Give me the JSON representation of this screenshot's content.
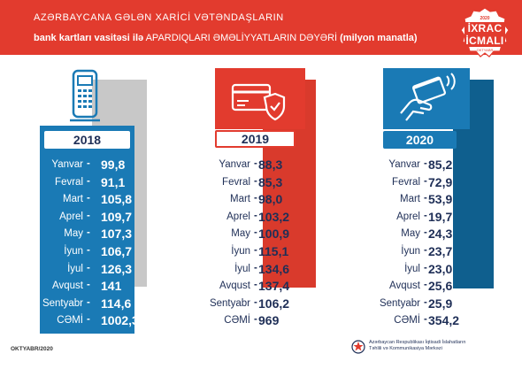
{
  "header": {
    "title_line1": "AZƏRBAYCANA GƏLƏN XARİCİ VƏTƏNDAŞLARIN",
    "title_line2_bold": "bank kartları vasitəsi ilə",
    "title_line2_rest": " APARDIQLARI ƏMƏLİYYATLARIN DƏYƏRİ ",
    "title_line2_unit": "(milyon manatla)"
  },
  "badge": {
    "year": "2020",
    "line1": "İXRAC",
    "line2": "İCMALI",
    "small": "OKTYABR"
  },
  "panels": [
    {
      "year": "2018",
      "rows": [
        {
          "month": "Yanvar",
          "value": "99,8"
        },
        {
          "month": "Fevral",
          "value": "91,1"
        },
        {
          "month": "Mart",
          "value": "105,8"
        },
        {
          "month": "Aprel",
          "value": "109,7"
        },
        {
          "month": "May",
          "value": "107,3"
        },
        {
          "month": "İyun",
          "value": "106,7"
        },
        {
          "month": "İyul",
          "value": "126,3"
        },
        {
          "month": "Avqust",
          "value": "141"
        },
        {
          "month": "Sentyabr",
          "value": "114,6"
        },
        {
          "month": "CƏMİ",
          "value": "1002,3"
        }
      ],
      "icon": "pos-terminal-icon"
    },
    {
      "year": "2019",
      "rows": [
        {
          "month": "Yanvar",
          "value": "88,3"
        },
        {
          "month": "Fevral",
          "value": "85,3"
        },
        {
          "month": "Mart",
          "value": "98,0"
        },
        {
          "month": "Aprel",
          "value": "103,2"
        },
        {
          "month": "May",
          "value": "100,9"
        },
        {
          "month": "İyun",
          "value": "115,1"
        },
        {
          "month": "İyul",
          "value": "134,6"
        },
        {
          "month": "Avqust",
          "value": "137,4"
        },
        {
          "month": "Sentyabr",
          "value": "106,2"
        },
        {
          "month": "CƏMİ",
          "value": "969"
        }
      ],
      "icon": "secure-card-icon"
    },
    {
      "year": "2020",
      "rows": [
        {
          "month": "Yanvar",
          "value": "85,2"
        },
        {
          "month": "Fevral",
          "value": "72,9"
        },
        {
          "month": "Mart",
          "value": "53,9"
        },
        {
          "month": "Aprel",
          "value": "19,7"
        },
        {
          "month": "May",
          "value": "24,3"
        },
        {
          "month": "İyun",
          "value": "23,7"
        },
        {
          "month": "İyul",
          "value": "23,0"
        },
        {
          "month": "Avqust",
          "value": "25,6"
        },
        {
          "month": "Sentyabr",
          "value": "25,9"
        },
        {
          "month": "CƏMİ",
          "value": "354,2"
        }
      ],
      "icon": "contactless-payment-icon"
    }
  ],
  "footer": {
    "date": "OKTYABR/2020",
    "org_line1": "Azərbaycan Respublikası İqtisadi İslahatların",
    "org_line2": "Təhlili və Kommunikasiya Mərkəzi"
  },
  "colors": {
    "red": "#e23b2e",
    "blue": "#1a7ab5",
    "navy": "#1f2f57",
    "gray_shadow": "#c8c8c8"
  }
}
